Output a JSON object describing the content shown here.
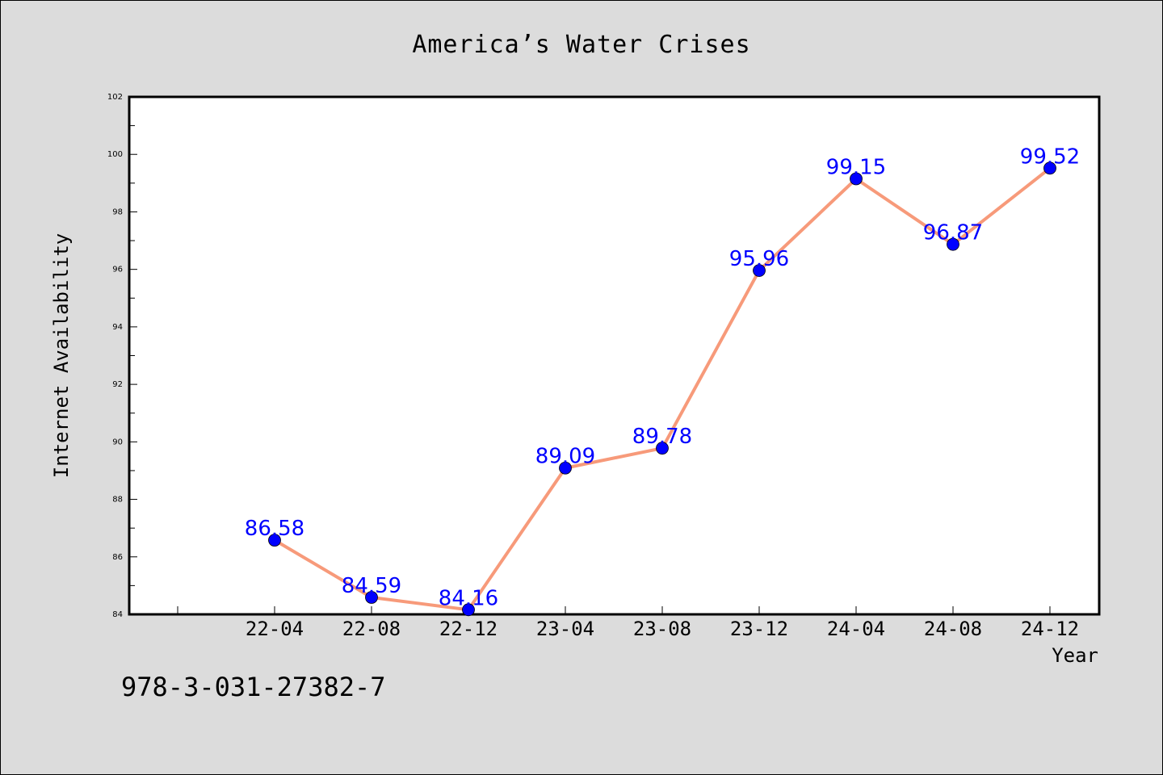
{
  "footer": {
    "isbn": "978-3-031-27382-7"
  },
  "colors": {
    "background": "#dcdcdc",
    "plot_area": "#ffffff",
    "line": "#f79a7a",
    "marker": "#0000ff",
    "data_label": "#0000ff"
  },
  "chart_data": {
    "type": "line",
    "title": "America’s Water Crises",
    "xlabel": "Year",
    "ylabel": "Internet Availability",
    "categories": [
      "22-04",
      "22-08",
      "22-12",
      "23-04",
      "23-08",
      "23-12",
      "24-04",
      "24-08",
      "24-12"
    ],
    "values": [
      86.58,
      84.59,
      84.16,
      89.09,
      89.78,
      95.96,
      99.15,
      96.87,
      99.52
    ],
    "ylim": [
      84,
      102
    ],
    "yticks": [
      84,
      86,
      88,
      90,
      92,
      94,
      96,
      98,
      100,
      102
    ],
    "grid": false,
    "legend": "none"
  }
}
